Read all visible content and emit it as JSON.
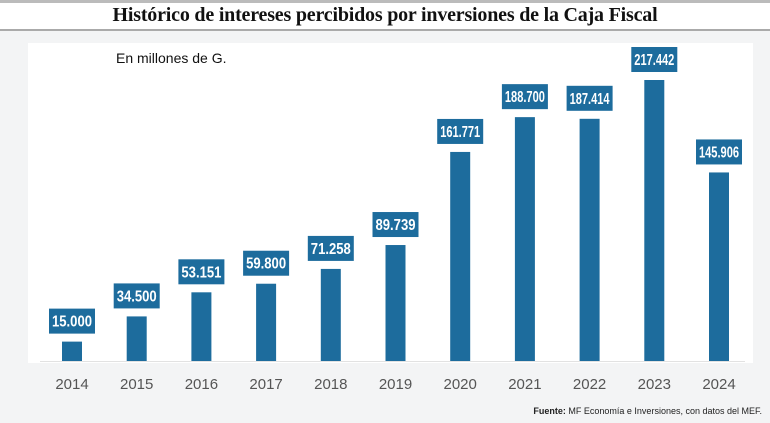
{
  "chart_data": {
    "type": "bar",
    "title": "Histórico de intereses percibidos por inversiones de la Caja Fiscal",
    "subtitle": "En millones de G.",
    "categories": [
      "2014",
      "2015",
      "2016",
      "2017",
      "2018",
      "2019",
      "2020",
      "2021",
      "2022",
      "2023",
      "2024"
    ],
    "values": [
      15000,
      34500,
      53151,
      59800,
      71258,
      89739,
      161771,
      188700,
      187414,
      217442,
      145906
    ],
    "data_labels": [
      "15.000",
      "34.500",
      "53.151",
      "59.800",
      "71.258",
      "89.739",
      "161.771",
      "188.700",
      "187.414",
      "217.442",
      "145.906"
    ],
    "xlabel": "",
    "ylabel": "",
    "ylim": [
      0,
      217442
    ],
    "grid": false,
    "bar_color": "#1d6c9d"
  },
  "source": {
    "label": "Fuente:",
    "text": " MF Economía e Inversiones, con datos del MEF."
  }
}
